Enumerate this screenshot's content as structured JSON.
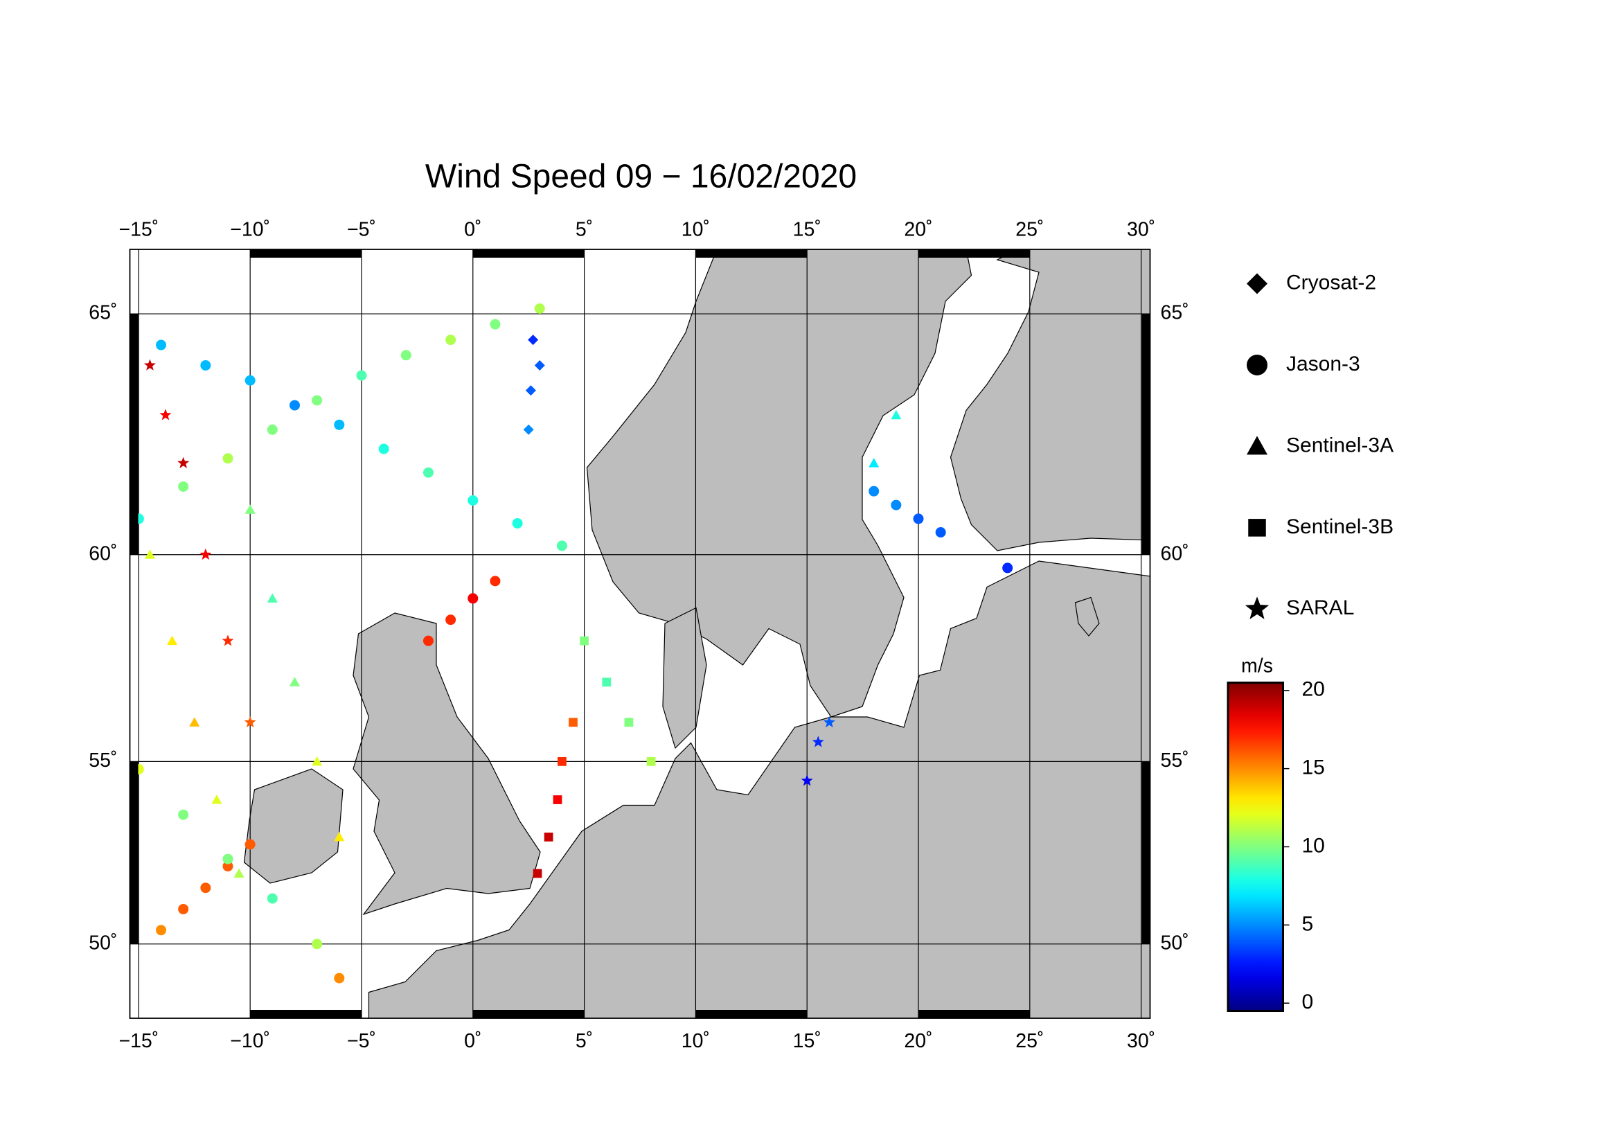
{
  "chart_data": {
    "type": "map",
    "title": "Wind Speed 09 − 16/02/2020",
    "lonlim": [
      -15.4,
      30.4
    ],
    "latlim": [
      47.8,
      66.2
    ],
    "xticks": [
      {
        "value": -15,
        "label": "−15˚"
      },
      {
        "value": -10,
        "label": "−10˚"
      },
      {
        "value": -5,
        "label": "−5˚"
      },
      {
        "value": 0,
        "label": "0˚"
      },
      {
        "value": 5,
        "label": "5˚"
      },
      {
        "value": 10,
        "label": "10˚"
      },
      {
        "value": 15,
        "label": "15˚"
      },
      {
        "value": 20,
        "label": "20˚"
      },
      {
        "value": 25,
        "label": "25˚"
      },
      {
        "value": 30,
        "label": "30˚"
      }
    ],
    "yticks": [
      {
        "value": 50,
        "label": "50˚"
      },
      {
        "value": 55,
        "label": "55˚"
      },
      {
        "value": 60,
        "label": "60˚"
      },
      {
        "value": 65,
        "label": "65˚"
      }
    ],
    "grid": true,
    "colormap": "jet",
    "colorbar_label": "m/s",
    "clim": [
      -0.5,
      20.5
    ],
    "cticks": [
      0,
      5,
      10,
      15,
      20
    ],
    "series": [
      {
        "name": "Cryosat-2",
        "marker": "diamond",
        "lon": [
          2.7,
          2.6,
          2.5,
          3.0
        ],
        "lat": [
          64.5,
          63.5,
          62.7,
          64.0
        ],
        "values": [
          3,
          4,
          5,
          4
        ]
      },
      {
        "name": "Jason-3",
        "marker": "circle",
        "lon": [
          -15,
          -13,
          -11,
          -9,
          -7,
          -5,
          -3,
          -1,
          1,
          3,
          -14,
          -12,
          -10,
          -8,
          -6,
          -4,
          -2,
          0,
          2,
          4,
          -2,
          -1,
          0,
          1,
          -14,
          -13,
          -12,
          -11,
          -10,
          18,
          19,
          20,
          21,
          24,
          -15,
          -13,
          -11,
          -9,
          -7,
          -6
        ],
        "lat": [
          60.8,
          61.5,
          62.1,
          62.7,
          63.3,
          63.8,
          64.2,
          64.5,
          64.8,
          65.1,
          64.4,
          64.0,
          63.7,
          63.2,
          62.8,
          62.3,
          61.8,
          61.2,
          60.7,
          60.2,
          58.0,
          58.5,
          59.0,
          59.4,
          50.4,
          51.0,
          51.6,
          52.2,
          52.8,
          61.4,
          61.1,
          60.8,
          60.5,
          59.7,
          54.8,
          53.6,
          52.4,
          51.3,
          50.0,
          49.0
        ],
        "values": [
          8,
          10,
          11,
          10,
          10,
          9,
          10,
          11,
          10,
          11,
          6,
          6,
          6,
          5,
          6,
          8,
          9,
          8,
          8,
          9,
          17,
          17,
          18,
          17,
          15,
          16,
          16,
          16,
          16,
          5,
          5,
          4,
          4,
          3,
          12,
          10,
          10,
          9,
          11,
          15
        ]
      },
      {
        "name": "Sentinel-3A",
        "marker": "triangle",
        "lon": [
          -14.5,
          -13.5,
          -12.5,
          -11.5,
          -10.5,
          -10,
          -9,
          -8,
          -7,
          -6,
          18,
          19
        ],
        "lat": [
          60,
          58,
          56,
          54,
          52,
          61,
          59,
          57,
          55,
          53,
          62,
          63
        ],
        "values": [
          12,
          13,
          14,
          12,
          11,
          10,
          9,
          10,
          12,
          13,
          7,
          8
        ]
      },
      {
        "name": "Sentinel-3B",
        "marker": "square",
        "lon": [
          3.8,
          3.4,
          2.9,
          4.0,
          4.5,
          5,
          6,
          7,
          8
        ],
        "lat": [
          54.0,
          53.0,
          52.0,
          55.0,
          56.0,
          58,
          57,
          56,
          55
        ],
        "values": [
          18,
          19,
          19,
          17,
          16,
          10,
          9,
          10,
          11
        ]
      },
      {
        "name": "SARAL",
        "marker": "star",
        "lon": [
          -14.5,
          -13.8,
          -13,
          -12,
          -11,
          -10,
          15,
          15.5,
          16
        ],
        "lat": [
          64,
          63,
          62,
          60,
          58,
          56,
          54.5,
          55.5,
          56
        ],
        "values": [
          19,
          18,
          19,
          18,
          17,
          16,
          2,
          3,
          4
        ]
      }
    ]
  }
}
